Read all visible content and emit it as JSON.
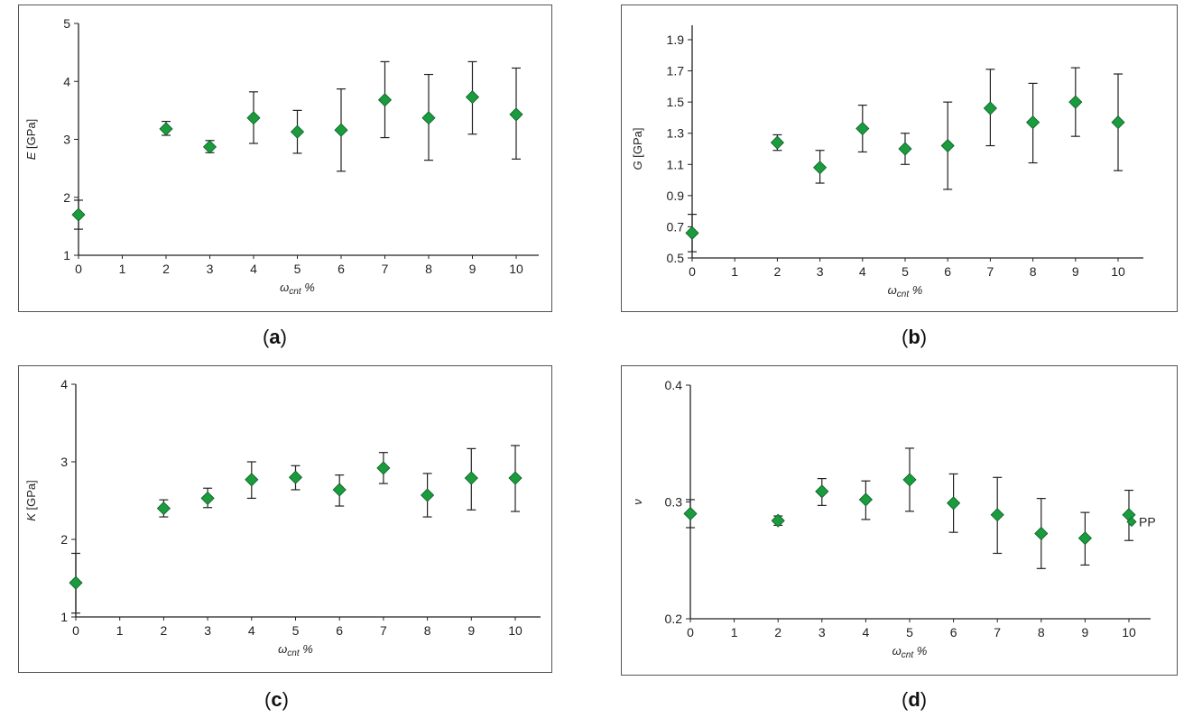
{
  "chart_data": [
    {
      "type": "scatter",
      "panel_label": "a",
      "ylabel_symbol": "E",
      "ylabel_unit": " [GPa]",
      "xlabel_symbol": "ω",
      "xlabel_sub": "cnt",
      "xlabel_unit": " %",
      "xlim": [
        0,
        10
      ],
      "ylim": [
        1,
        5
      ],
      "xticks": [
        "0",
        "1",
        "2",
        "3",
        "4",
        "5",
        "6",
        "7",
        "8",
        "9",
        "10"
      ],
      "yticks": [
        "1",
        "2",
        "3",
        "4",
        "5"
      ],
      "x": [
        0,
        2,
        3,
        4,
        5,
        6,
        7,
        8,
        9,
        10
      ],
      "y": [
        1.7,
        3.18,
        2.87,
        3.37,
        3.13,
        3.16,
        3.68,
        3.37,
        3.73,
        3.43
      ],
      "err_low": [
        1.45,
        3.07,
        2.77,
        2.93,
        2.76,
        2.45,
        3.03,
        2.64,
        3.09,
        2.66
      ],
      "err_high": [
        1.95,
        3.31,
        2.98,
        3.82,
        3.5,
        3.87,
        4.34,
        4.12,
        4.34,
        4.23
      ],
      "marker_color": "#1a9c3e"
    },
    {
      "type": "scatter",
      "panel_label": "b",
      "ylabel_symbol": "G",
      "ylabel_unit": " [GPa]",
      "xlabel_symbol": "ω",
      "xlabel_sub": "cnt",
      "xlabel_unit": " %",
      "xlim": [
        0,
        10
      ],
      "ylim": [
        0.5,
        1.9
      ],
      "xticks": [
        "0",
        "1",
        "2",
        "3",
        "4",
        "5",
        "6",
        "7",
        "8",
        "9",
        "10"
      ],
      "yticks": [
        "0.5",
        "0.7",
        "0.9",
        "1.1",
        "1.3",
        "1.5",
        "1.7",
        "1.9"
      ],
      "x": [
        0,
        2,
        3,
        4,
        5,
        6,
        7,
        8,
        9,
        10
      ],
      "y": [
        0.66,
        1.24,
        1.08,
        1.33,
        1.2,
        1.22,
        1.46,
        1.37,
        1.5,
        1.37
      ],
      "err_low": [
        0.54,
        1.19,
        0.98,
        1.18,
        1.1,
        0.94,
        1.22,
        1.11,
        1.28,
        1.06
      ],
      "err_high": [
        0.78,
        1.29,
        1.19,
        1.48,
        1.3,
        1.5,
        1.71,
        1.62,
        1.72,
        1.68
      ],
      "marker_color": "#1a9c3e"
    },
    {
      "type": "scatter",
      "panel_label": "c",
      "ylabel_symbol": "K",
      "ylabel_unit": " [GPa]",
      "xlabel_symbol": "ω",
      "xlabel_sub": "cnt",
      "xlabel_unit": " %",
      "xlim": [
        0,
        10
      ],
      "ylim": [
        1,
        4
      ],
      "xticks": [
        "0",
        "1",
        "2",
        "3",
        "4",
        "5",
        "6",
        "7",
        "8",
        "9",
        "10"
      ],
      "yticks": [
        "1",
        "2",
        "3",
        "4"
      ],
      "x": [
        0,
        2,
        3,
        4,
        5,
        6,
        7,
        8,
        9,
        10
      ],
      "y": [
        1.44,
        2.4,
        2.53,
        2.77,
        2.8,
        2.64,
        2.92,
        2.57,
        2.79,
        2.79
      ],
      "err_low": [
        1.05,
        2.29,
        2.41,
        2.53,
        2.64,
        2.43,
        2.72,
        2.29,
        2.38,
        2.36
      ],
      "err_high": [
        1.82,
        2.51,
        2.66,
        3.0,
        2.95,
        2.83,
        3.12,
        2.85,
        3.17,
        3.21
      ],
      "marker_color": "#1a9c3e"
    },
    {
      "type": "scatter",
      "panel_label": "d",
      "ylabel_symbol": "ν",
      "ylabel_unit": "",
      "xlabel_symbol": "ω",
      "xlabel_sub": "cnt",
      "xlabel_unit": " %",
      "xlim": [
        0,
        10
      ],
      "ylim": [
        0.2,
        0.4
      ],
      "xticks": [
        "0",
        "1",
        "2",
        "3",
        "4",
        "5",
        "6",
        "7",
        "8",
        "9",
        "10"
      ],
      "yticks": [
        "0.2",
        "0.3",
        "0.4"
      ],
      "x": [
        0,
        2,
        3,
        4,
        5,
        6,
        7,
        8,
        9,
        10
      ],
      "y": [
        0.29,
        0.284,
        0.309,
        0.302,
        0.319,
        0.299,
        0.289,
        0.273,
        0.269,
        0.289
      ],
      "err_low": [
        0.278,
        0.28,
        0.297,
        0.285,
        0.292,
        0.274,
        0.256,
        0.243,
        0.246,
        0.267
      ],
      "err_high": [
        0.302,
        0.288,
        0.32,
        0.318,
        0.346,
        0.324,
        0.321,
        0.303,
        0.291,
        0.31
      ],
      "annotation": {
        "text": "PP",
        "x": 10,
        "y": 0.283
      },
      "marker_color": "#1a9c3e"
    }
  ]
}
